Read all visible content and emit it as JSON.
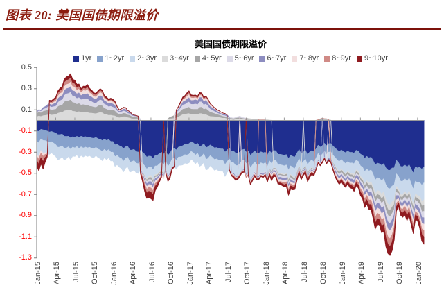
{
  "header": {
    "title": "图表 20:  美国国债期限溢价",
    "accent_color": "#8C1D10",
    "rule_color": "#7C120B"
  },
  "axis": {
    "positive_label_color": "#404040",
    "negative_label_color": "#FF0000",
    "axis_line_color": "#7F7F7F",
    "zero_line_color": "#9A9A9A",
    "y_tick_labels": [
      "0.5",
      "0.3",
      "0.1",
      "-0.1",
      "-0.3",
      "-0.5",
      "-0.7",
      "-0.9",
      "-1.1",
      "-1.3"
    ]
  },
  "chart_data": {
    "type": "area",
    "stacked": true,
    "title": "美国国债期限溢价",
    "xlabel": "",
    "ylabel": "",
    "ylim": [
      -1.3,
      0.5
    ],
    "y_tick_step": 0.2,
    "grid": false,
    "legend_position": "top",
    "x_labels": [
      "Jan-15",
      "Apr-15",
      "Jul-15",
      "Oct-15",
      "Jan-16",
      "Apr-16",
      "Jul-16",
      "Oct-16",
      "Jan-17",
      "Apr-17",
      "Jul-17",
      "Oct-17",
      "Jan-18",
      "Apr-18",
      "Jul-18",
      "Oct-18",
      "Jan-19",
      "Apr-19",
      "Jul-19",
      "Oct-19",
      "Jan-20"
    ],
    "x_label_month_step": 3,
    "months_per_point": 1,
    "x_start": "Jan-15",
    "x_end": "Feb-20",
    "series": [
      {
        "name": "1yr",
        "color": "#1F2E8F",
        "values": [
          -0.1,
          -0.09,
          -0.11,
          -0.12,
          -0.13,
          -0.15,
          -0.16,
          -0.15,
          -0.16,
          -0.17,
          -0.18,
          -0.19,
          -0.2,
          -0.24,
          -0.25,
          -0.28,
          -0.3,
          -0.32,
          -0.34,
          -0.33,
          -0.32,
          -0.31,
          -0.28,
          -0.24,
          -0.22,
          -0.23,
          -0.24,
          -0.25,
          -0.26,
          -0.27,
          -0.28,
          -0.29,
          -0.3,
          -0.3,
          -0.31,
          -0.31,
          -0.3,
          -0.31,
          -0.32,
          -0.33,
          -0.33,
          -0.31,
          -0.3,
          -0.3,
          -0.27,
          -0.24,
          -0.22,
          -0.26,
          -0.28,
          -0.29,
          -0.31,
          -0.32,
          -0.34,
          -0.38,
          -0.41,
          -0.45,
          -0.45,
          -0.4,
          -0.42,
          -0.46,
          -0.45,
          -0.44
        ]
      },
      {
        "name": "1~2yr",
        "color": "#87A2CC",
        "values": [
          -0.1,
          -0.1,
          -0.1,
          -0.11,
          -0.11,
          -0.1,
          -0.1,
          -0.1,
          -0.1,
          -0.1,
          -0.1,
          -0.1,
          -0.1,
          -0.11,
          -0.11,
          -0.11,
          -0.11,
          -0.11,
          -0.1,
          -0.1,
          -0.1,
          -0.1,
          -0.1,
          -0.1,
          -0.1,
          -0.1,
          -0.1,
          -0.11,
          -0.11,
          -0.11,
          -0.11,
          -0.11,
          -0.11,
          -0.11,
          -0.11,
          -0.11,
          -0.1,
          -0.1,
          -0.1,
          -0.1,
          -0.1,
          -0.1,
          -0.09,
          -0.09,
          -0.09,
          -0.08,
          -0.08,
          -0.09,
          -0.09,
          -0.1,
          -0.1,
          -0.11,
          -0.12,
          -0.13,
          -0.14,
          -0.16,
          -0.17,
          -0.13,
          -0.13,
          -0.14,
          -0.14,
          -0.15
        ]
      },
      {
        "name": "2~3yr",
        "color": "#C9D9EC",
        "values": [
          -0.12,
          -0.12,
          -0.11,
          -0.11,
          -0.1,
          -0.09,
          -0.08,
          -0.08,
          -0.08,
          -0.08,
          -0.08,
          -0.08,
          -0.08,
          -0.09,
          -0.09,
          -0.09,
          -0.09,
          -0.09,
          -0.08,
          -0.08,
          -0.08,
          -0.08,
          -0.08,
          -0.08,
          -0.08,
          -0.08,
          -0.08,
          -0.1,
          -0.1,
          -0.1,
          -0.1,
          -0.1,
          -0.1,
          -0.1,
          -0.1,
          -0.1,
          -0.08,
          -0.08,
          -0.08,
          -0.08,
          -0.08,
          -0.08,
          -0.07,
          -0.07,
          -0.07,
          -0.06,
          -0.06,
          -0.08,
          -0.09,
          -0.09,
          -0.1,
          -0.1,
          -0.11,
          -0.12,
          -0.12,
          -0.14,
          -0.15,
          -0.12,
          -0.12,
          -0.13,
          -0.12,
          -0.16
        ]
      },
      {
        "name": "3~4yr",
        "color": "#DBDBDB",
        "values": [
          0.04,
          0.05,
          0.06,
          0.06,
          0.08,
          0.1,
          0.09,
          0.08,
          0.08,
          0.07,
          0.08,
          0.06,
          0.05,
          0.03,
          0.04,
          0.02,
          0.02,
          -0.01,
          -0.02,
          -0.01,
          -0.01,
          0.02,
          0.03,
          0.06,
          0.07,
          0.06,
          0.07,
          0.05,
          0.04,
          0.03,
          0.02,
          0.01,
          0.02,
          0.01,
          0.01,
          0.01,
          0.01,
          0.0,
          -0.01,
          -0.01,
          -0.01,
          -0.01,
          0.0,
          -0.01,
          0.0,
          0.01,
          0.01,
          -0.01,
          -0.01,
          -0.01,
          -0.02,
          -0.02,
          -0.02,
          -0.03,
          -0.04,
          -0.05,
          -0.05,
          -0.02,
          -0.02,
          -0.03,
          -0.03,
          -0.05
        ]
      },
      {
        "name": "4~5yr",
        "color": "#A6A6A6",
        "values": [
          0.03,
          0.04,
          0.05,
          0.05,
          0.07,
          0.09,
          0.08,
          0.07,
          0.07,
          0.06,
          0.07,
          0.05,
          0.05,
          0.03,
          0.03,
          0.02,
          0.01,
          -0.01,
          -0.02,
          -0.01,
          -0.01,
          0.01,
          0.03,
          0.05,
          0.06,
          0.05,
          0.06,
          0.05,
          0.03,
          0.02,
          0.01,
          0.01,
          0.01,
          0.01,
          0.0,
          0.0,
          0.0,
          -0.01,
          -0.01,
          -0.01,
          -0.02,
          -0.01,
          -0.01,
          -0.01,
          0.0,
          0.01,
          0.0,
          -0.01,
          -0.02,
          -0.02,
          -0.02,
          -0.02,
          -0.03,
          -0.04,
          -0.04,
          -0.05,
          -0.06,
          -0.02,
          -0.03,
          -0.03,
          -0.03,
          -0.06
        ]
      },
      {
        "name": "5~6yr",
        "color": "#DCDAE8",
        "values": [
          0.01,
          0.02,
          0.03,
          0.03,
          0.05,
          0.07,
          0.06,
          0.05,
          0.06,
          0.04,
          0.05,
          0.04,
          0.03,
          0.02,
          0.02,
          0.01,
          0.01,
          -0.02,
          -0.02,
          -0.01,
          -0.01,
          -0.01,
          0.02,
          0.04,
          0.05,
          0.05,
          0.05,
          0.04,
          0.02,
          0.01,
          0.01,
          0.0,
          0.01,
          0.0,
          -0.01,
          -0.01,
          -0.01,
          -0.01,
          -0.02,
          -0.02,
          -0.02,
          -0.01,
          -0.01,
          -0.01,
          -0.01,
          0.0,
          0.0,
          -0.02,
          -0.02,
          -0.02,
          -0.02,
          -0.02,
          -0.03,
          -0.04,
          -0.04,
          -0.06,
          -0.06,
          -0.02,
          -0.03,
          -0.04,
          -0.04,
          -0.06
        ]
      },
      {
        "name": "6~7yr",
        "color": "#8D8DC0",
        "values": [
          0.0,
          0.01,
          0.02,
          0.03,
          0.04,
          0.05,
          0.05,
          0.04,
          0.05,
          0.04,
          0.04,
          0.03,
          0.03,
          0.01,
          0.02,
          0.01,
          0.0,
          -0.02,
          -0.03,
          -0.02,
          -0.01,
          -0.01,
          0.01,
          0.03,
          0.04,
          0.04,
          0.04,
          0.03,
          0.02,
          0.01,
          0.01,
          -0.01,
          0.0,
          -0.01,
          -0.01,
          -0.01,
          -0.01,
          -0.01,
          -0.02,
          -0.02,
          -0.02,
          -0.01,
          -0.01,
          -0.01,
          -0.01,
          0.0,
          -0.01,
          -0.02,
          -0.02,
          -0.02,
          -0.03,
          -0.03,
          -0.03,
          -0.04,
          -0.05,
          -0.06,
          -0.07,
          -0.03,
          -0.03,
          -0.04,
          -0.04,
          -0.06
        ]
      },
      {
        "name": "7~8yr",
        "color": "#F2DEDE",
        "values": [
          -0.02,
          -0.03,
          0.01,
          0.02,
          0.03,
          0.04,
          0.04,
          0.03,
          0.04,
          0.02,
          0.03,
          0.02,
          0.02,
          0.01,
          0.01,
          0.0,
          0.0,
          -0.02,
          -0.03,
          -0.02,
          -0.01,
          -0.01,
          0.01,
          0.02,
          0.03,
          0.02,
          0.02,
          0.02,
          0.01,
          0.01,
          0.0,
          -0.01,
          0.0,
          -0.01,
          -0.01,
          -0.01,
          -0.01,
          -0.02,
          -0.02,
          -0.02,
          -0.02,
          -0.01,
          -0.01,
          -0.01,
          -0.01,
          -0.01,
          0.0,
          -0.02,
          -0.02,
          -0.02,
          -0.02,
          -0.03,
          -0.03,
          -0.05,
          -0.05,
          -0.07,
          -0.07,
          -0.02,
          -0.03,
          -0.04,
          -0.03,
          -0.06
        ]
      },
      {
        "name": "8~9yr",
        "color": "#D08A86",
        "values": [
          -0.04,
          -0.05,
          0.01,
          0.02,
          0.03,
          0.04,
          0.03,
          0.02,
          0.02,
          0.02,
          0.02,
          0.01,
          0.01,
          0.0,
          0.0,
          0.0,
          0.0,
          -0.03,
          -0.04,
          -0.02,
          0.0,
          -0.01,
          0.0,
          0.01,
          0.02,
          0.01,
          0.01,
          0.01,
          0.0,
          0.0,
          0.0,
          -0.01,
          -0.01,
          -0.01,
          -0.01,
          0.0,
          0.0,
          -0.01,
          -0.01,
          -0.02,
          -0.02,
          -0.01,
          -0.01,
          -0.01,
          0.0,
          0.0,
          0.0,
          -0.01,
          -0.01,
          -0.01,
          -0.02,
          -0.03,
          -0.04,
          -0.05,
          -0.05,
          -0.07,
          -0.07,
          -0.02,
          -0.04,
          -0.04,
          -0.03,
          -0.06
        ]
      },
      {
        "name": "9~10yr",
        "color": "#8F1B20",
        "values": [
          -0.05,
          -0.07,
          0.01,
          0.01,
          0.02,
          0.03,
          0.03,
          0.01,
          0.02,
          0.01,
          0.01,
          0.01,
          0.01,
          0.0,
          0.0,
          0.0,
          0.0,
          -0.04,
          -0.06,
          -0.03,
          0.0,
          -0.02,
          0.0,
          0.01,
          0.01,
          0.01,
          0.01,
          0.0,
          0.0,
          0.0,
          0.0,
          -0.01,
          -0.01,
          0.0,
          -0.01,
          -0.01,
          -0.01,
          -0.02,
          -0.01,
          -0.02,
          -0.03,
          -0.02,
          -0.01,
          -0.02,
          -0.01,
          -0.01,
          -0.01,
          -0.01,
          -0.02,
          -0.02,
          -0.03,
          -0.03,
          -0.04,
          -0.05,
          -0.05,
          -0.08,
          -0.08,
          -0.03,
          -0.04,
          -0.04,
          -0.04,
          -0.07
        ]
      }
    ]
  }
}
